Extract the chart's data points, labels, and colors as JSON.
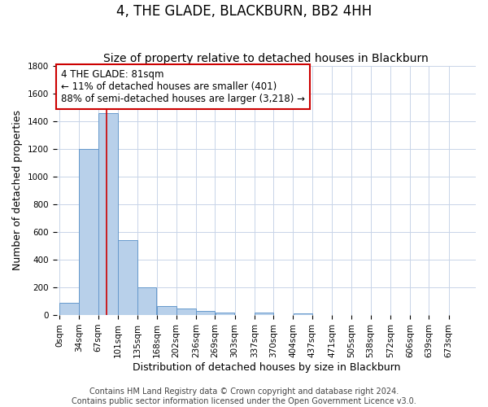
{
  "title": "4, THE GLADE, BLACKBURN, BB2 4HH",
  "subtitle": "Size of property relative to detached houses in Blackburn",
  "xlabel": "Distribution of detached houses by size in Blackburn",
  "ylabel": "Number of detached properties",
  "bin_labels": [
    "0sqm",
    "34sqm",
    "67sqm",
    "101sqm",
    "135sqm",
    "168sqm",
    "202sqm",
    "236sqm",
    "269sqm",
    "303sqm",
    "337sqm",
    "370sqm",
    "404sqm",
    "437sqm",
    "471sqm",
    "505sqm",
    "538sqm",
    "572sqm",
    "606sqm",
    "639sqm",
    "673sqm"
  ],
  "bin_left_edges": [
    0,
    34,
    67,
    101,
    135,
    168,
    202,
    236,
    269,
    303,
    337,
    370,
    404,
    437,
    471,
    505,
    538,
    572,
    606,
    639
  ],
  "bin_widths": [
    34,
    33,
    34,
    34,
    33,
    34,
    34,
    33,
    34,
    34,
    33,
    34,
    33,
    34,
    34,
    33,
    34,
    34,
    33,
    34
  ],
  "bar_heights": [
    90,
    1200,
    1460,
    540,
    200,
    65,
    48,
    30,
    20,
    0,
    20,
    0,
    15,
    0,
    0,
    0,
    0,
    0,
    0,
    0
  ],
  "bar_color": "#b8d0ea",
  "bar_edge_color": "#6699cc",
  "ylim": [
    0,
    1800
  ],
  "yticks": [
    0,
    200,
    400,
    600,
    800,
    1000,
    1200,
    1400,
    1600,
    1800
  ],
  "xlim_left": -5,
  "xlim_right": 720,
  "red_line_x": 81,
  "annotation_line1": "4 THE GLADE: 81sqm",
  "annotation_line2": "← 11% of detached houses are smaller (401)",
  "annotation_line3": "88% of semi-detached houses are larger (3,218) →",
  "annotation_box_color": "#ffffff",
  "annotation_box_edge": "#cc0000",
  "red_line_color": "#cc0000",
  "footer_line1": "Contains HM Land Registry data © Crown copyright and database right 2024.",
  "footer_line2": "Contains public sector information licensed under the Open Government Licence v3.0.",
  "background_color": "#ffffff",
  "grid_color": "#c8d4e8",
  "title_fontsize": 12,
  "subtitle_fontsize": 10,
  "axis_label_fontsize": 9,
  "tick_fontsize": 7.5,
  "annotation_fontsize": 8.5,
  "footer_fontsize": 7
}
